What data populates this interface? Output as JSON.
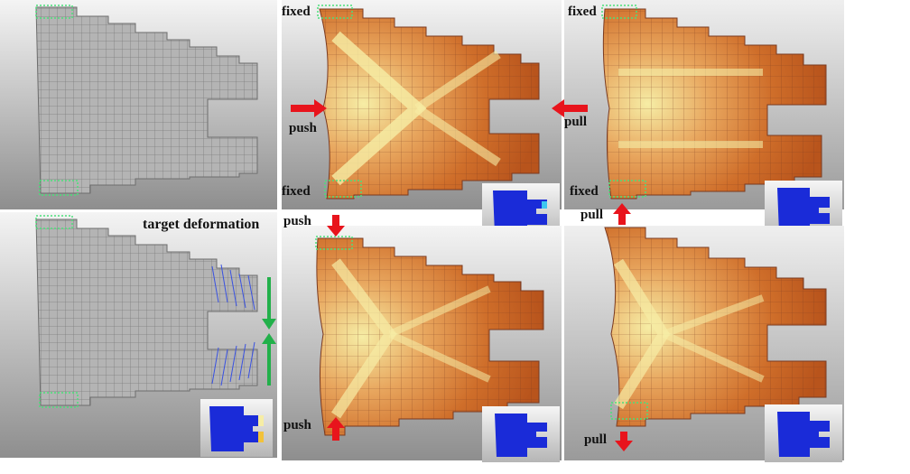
{
  "labels": {
    "target_deformation": "target deformation",
    "fixed": "fixed",
    "push": "push",
    "pull": "pull"
  },
  "panels": [
    {
      "id": "original-mesh",
      "kind": "undeformed voxel mesh"
    },
    {
      "id": "target-deformation",
      "kind": "voxel mesh with force vectors"
    },
    {
      "id": "push-horizontal",
      "kind": "deformed stress-colored mesh"
    },
    {
      "id": "pull-horizontal",
      "kind": "deformed stress-colored mesh"
    },
    {
      "id": "push-vertical",
      "kind": "deformed stress-colored mesh"
    },
    {
      "id": "pull-vertical",
      "kind": "deformed stress-colored mesh"
    }
  ],
  "colors": {
    "mesh_gray": "#a8a8a8",
    "stress_low": "#c7621f",
    "stress_mid": "#e8a65e",
    "stress_high": "#f6eda5",
    "arrow_red": "#e8141c",
    "arrow_green": "#22b04a",
    "fixed_green": "#4be07a",
    "inset_blue": "#1a2bd8"
  }
}
